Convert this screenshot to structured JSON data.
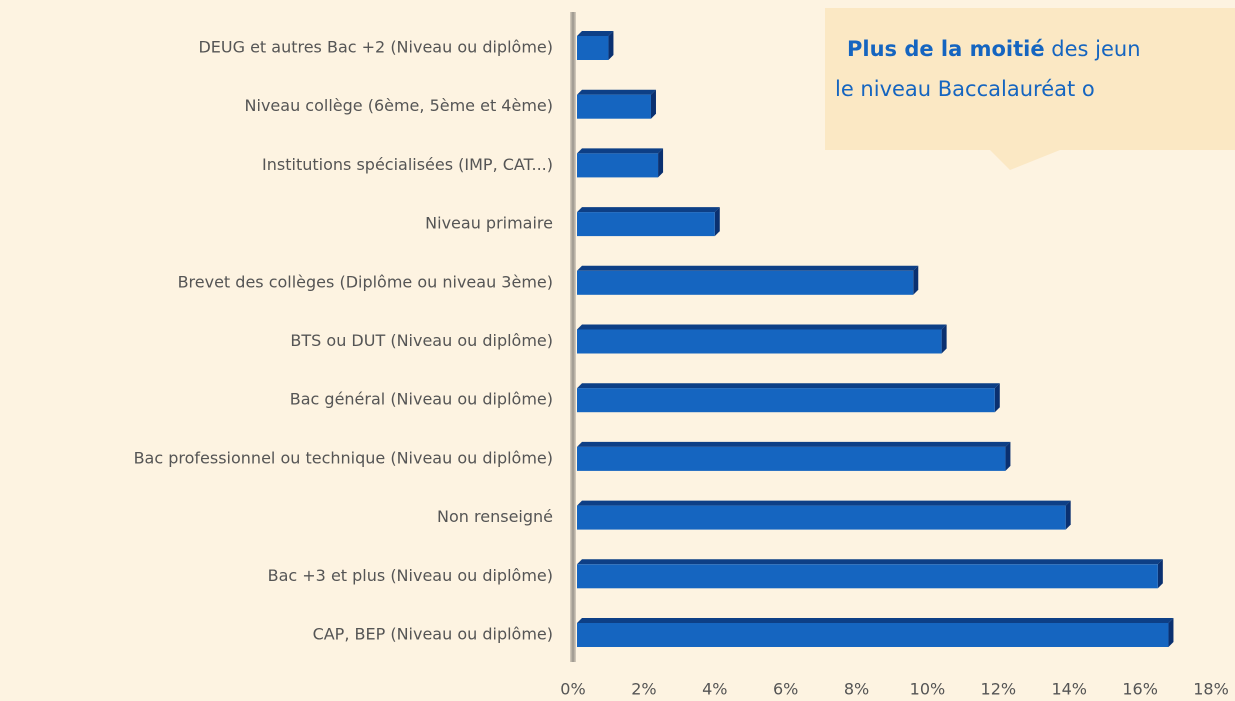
{
  "chart_data": {
    "type": "barh",
    "categories": [
      "DEUG et autres Bac +2 (Niveau ou diplôme)",
      "Niveau collège (6ème, 5ème et 4ème)",
      "Institutions spécialisées (IMP, CAT...)",
      "Niveau primaire",
      "Brevet des collèges (Diplôme ou niveau 3ème)",
      "BTS ou DUT (Niveau ou diplôme)",
      "Bac général (Niveau ou diplôme)",
      "Bac professionnel ou technique (Niveau ou diplôme)",
      "Non renseigné",
      "Bac +3 et plus (Niveau ou diplôme)",
      "CAP, BEP (Niveau ou diplôme)"
    ],
    "values": [
      1.0,
      2.2,
      2.4,
      4.0,
      9.6,
      10.4,
      11.9,
      12.2,
      13.9,
      16.5,
      16.8
    ],
    "color": "#1565c0",
    "xlim": [
      0,
      18
    ],
    "xticks": [
      {
        "value": 0,
        "label": "0%"
      },
      {
        "value": 2,
        "label": "2%"
      },
      {
        "value": 4,
        "label": "4%"
      },
      {
        "value": 6,
        "label": "6%"
      },
      {
        "value": 8,
        "label": "8%"
      },
      {
        "value": 10,
        "label": "10%"
      },
      {
        "value": 12,
        "label": "12%"
      },
      {
        "value": 14,
        "label": "14%"
      },
      {
        "value": 16,
        "label": "16%"
      },
      {
        "value": 18,
        "label": "18%"
      }
    ],
    "grid": false,
    "annotation": {
      "bold": "Plus de la moitié",
      "line1": " des jeun",
      "line2": "le niveau Baccalauréat o"
    }
  }
}
